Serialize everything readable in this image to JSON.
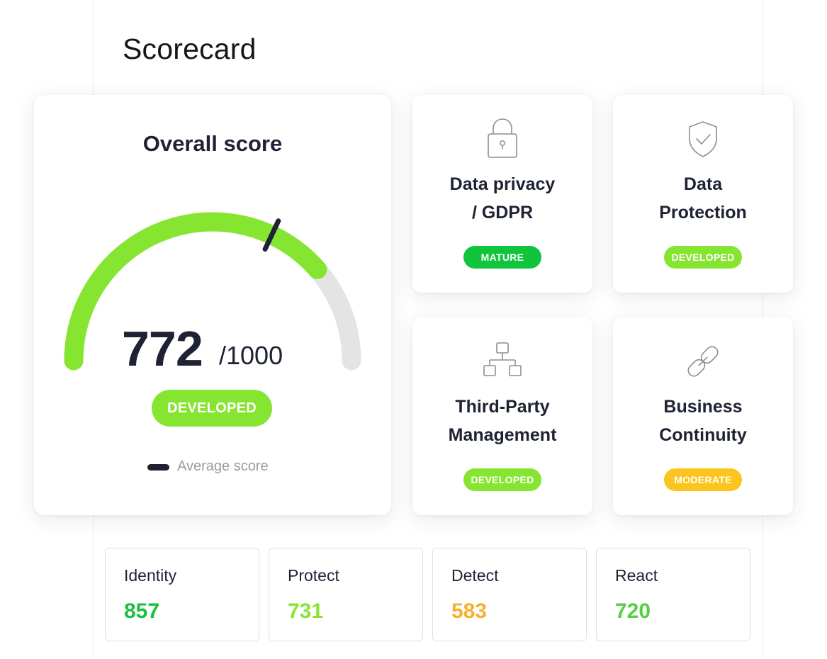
{
  "panel": {
    "title": "Scorecard"
  },
  "overall": {
    "title": "Overall score",
    "score": "772",
    "max": "/1000",
    "score_fraction": 0.772,
    "average_fraction": 0.64,
    "badge": "DEVELOPED",
    "legend_label": "Average score",
    "colors": {
      "fill": "#86e531",
      "track": "#e4e4e4",
      "marker": "#1e2233"
    }
  },
  "categories": [
    {
      "icon": "lock-icon",
      "title": "Data privacy\n/ GDPR",
      "badge": "MATURE",
      "badge_color": "#10c53b"
    },
    {
      "icon": "shield-check-icon",
      "title": "Data\nProtection",
      "badge": "DEVELOPED",
      "badge_color": "#86e531"
    },
    {
      "icon": "hierarchy-icon",
      "title": "Third-Party\nManagement",
      "badge": "DEVELOPED",
      "badge_color": "#86e531"
    },
    {
      "icon": "link-icon",
      "title": "Business\nContinuity",
      "badge": "MODERATE",
      "badge_color": "#fbc51d"
    }
  ],
  "metrics": [
    {
      "label": "Identity",
      "value": "857",
      "color": "#19bf40"
    },
    {
      "label": "Protect",
      "value": "731",
      "color": "#86e531"
    },
    {
      "label": "Detect",
      "value": "583",
      "color": "#f5b02e"
    },
    {
      "label": "React",
      "value": "720",
      "color": "#57cf45"
    }
  ]
}
